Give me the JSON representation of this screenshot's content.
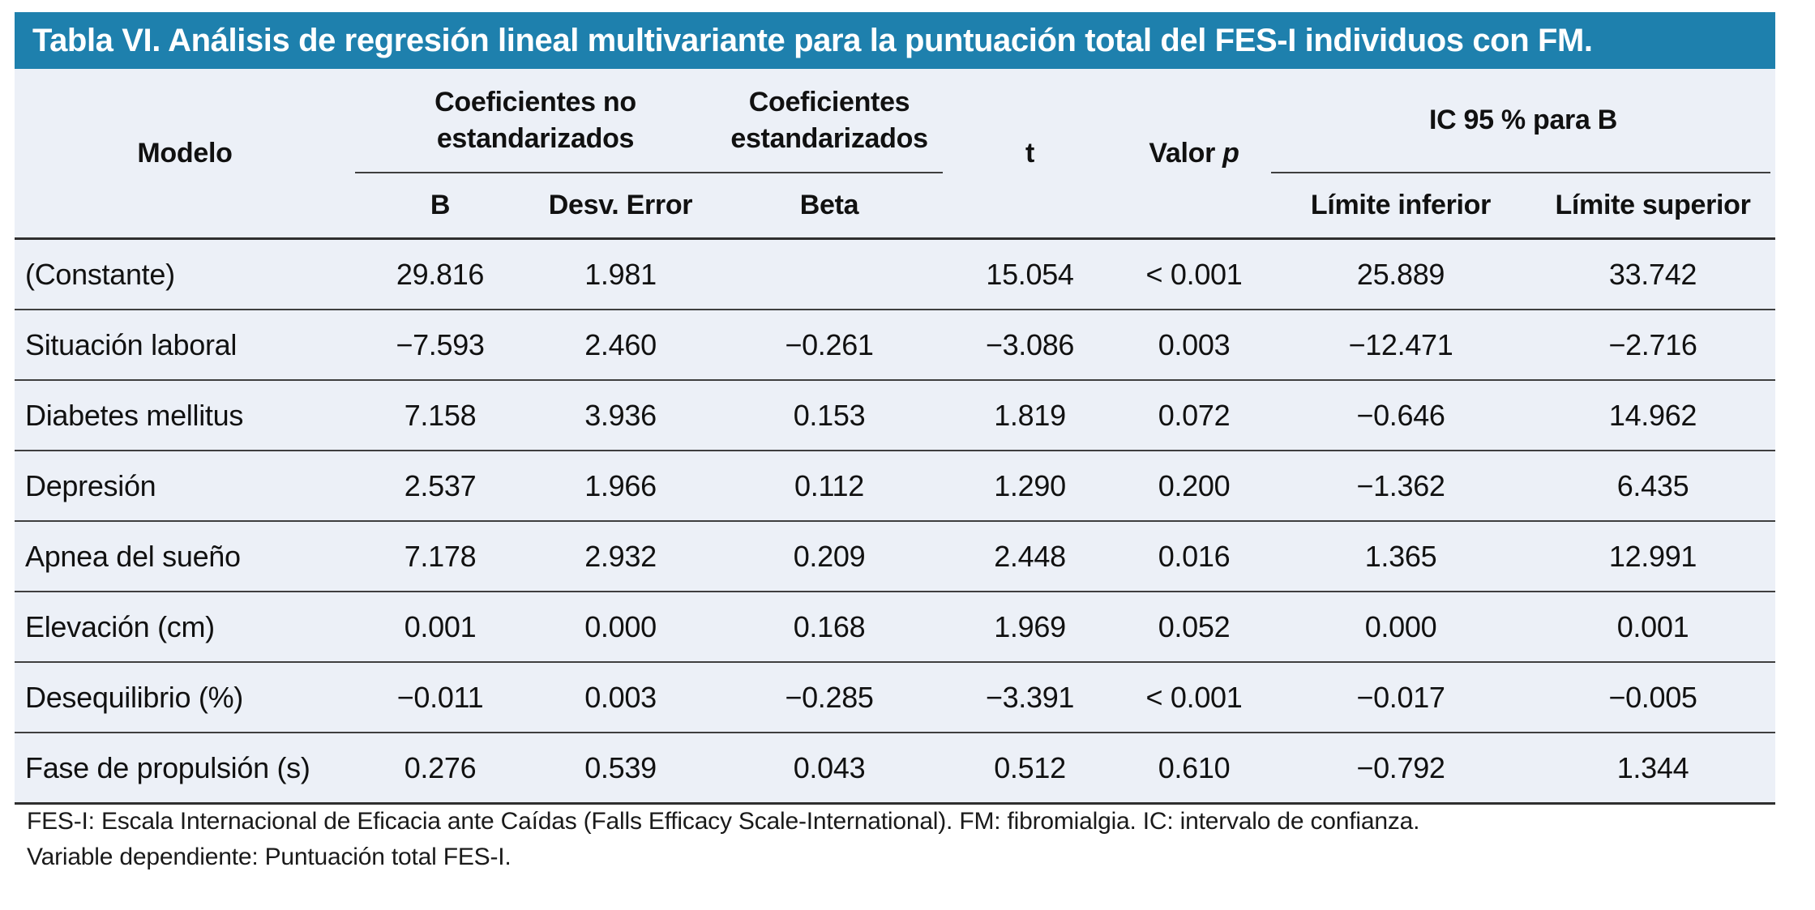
{
  "title": "Tabla VI. Análisis de regresión lineal multivariante para la puntuación total del FES-I individuos con FM.",
  "colors": {
    "title_bar_blue": "#1e80ad",
    "table_background": "#ecf0f7",
    "rule_dark": "#2f2f2f",
    "title_text": "#ffffff"
  },
  "header": {
    "model": "Modelo",
    "group_unstandardized": "Coeficientes no estandarizados",
    "group_standardized": "Coeficientes estandarizados",
    "t": "t",
    "valor": "Valor",
    "p": "p",
    "group_ic": "IC 95 % para B",
    "sub_b": "B",
    "sub_desv_error": "Desv. Error",
    "sub_beta": "Beta",
    "sub_limite_inferior": "Límite inferior",
    "sub_limite_superior": "Límite superior"
  },
  "table": {
    "columns": [
      "Modelo",
      "B",
      "Desv. Error",
      "Beta",
      "t",
      "Valor p",
      "Límite inferior",
      "Límite superior"
    ],
    "rows": [
      {
        "model": "(Constante)",
        "b": "29.816",
        "se": "1.981",
        "beta": "",
        "t": "15.054",
        "p": "< 0.001",
        "ci_lower": "25.889",
        "ci_upper": "33.742"
      },
      {
        "model": "Situación laboral",
        "b": "−7.593",
        "se": "2.460",
        "beta": "−0.261",
        "t": "−3.086",
        "p": "0.003",
        "ci_lower": "−12.471",
        "ci_upper": "−2.716"
      },
      {
        "model": "Diabetes mellitus",
        "b": "7.158",
        "se": "3.936",
        "beta": "0.153",
        "t": "1.819",
        "p": "0.072",
        "ci_lower": "−0.646",
        "ci_upper": "14.962"
      },
      {
        "model": "Depresión",
        "b": "2.537",
        "se": "1.966",
        "beta": "0.112",
        "t": "1.290",
        "p": "0.200",
        "ci_lower": "−1.362",
        "ci_upper": "6.435"
      },
      {
        "model": "Apnea del sueño",
        "b": "7.178",
        "se": "2.932",
        "beta": "0.209",
        "t": "2.448",
        "p": "0.016",
        "ci_lower": "1.365",
        "ci_upper": "12.991"
      },
      {
        "model": "Elevación (cm)",
        "b": "0.001",
        "se": "0.000",
        "beta": "0.168",
        "t": "1.969",
        "p": "0.052",
        "ci_lower": "0.000",
        "ci_upper": "0.001"
      },
      {
        "model": "Desequilibrio (%)",
        "b": "−0.011",
        "se": "0.003",
        "beta": "−0.285",
        "t": "−3.391",
        "p": "< 0.001",
        "ci_lower": "−0.017",
        "ci_upper": "−0.005"
      },
      {
        "model": "Fase de propulsión (s)",
        "b": "0.276",
        "se": "0.539",
        "beta": "0.043",
        "t": "0.512",
        "p": "0.610",
        "ci_lower": "−0.792",
        "ci_upper": "1.344"
      }
    ]
  },
  "footnotes": [
    "FES-I: Escala Internacional de Eficacia ante Caídas (Falls Efficacy Scale-International). FM: fibromialgia. IC: intervalo de confianza.",
    "Variable dependiente: Puntuación total FES-I."
  ]
}
